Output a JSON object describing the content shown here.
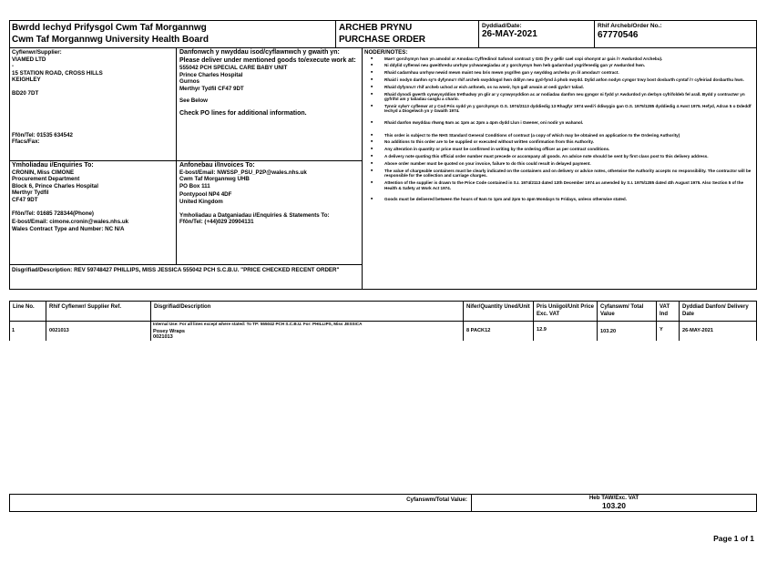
{
  "header": {
    "org_welsh": "Bwrdd Iechyd Prifysgol Cwm Taf Morgannwg",
    "org_english": "Cwm Taf Morgannwg University Health Board",
    "doc_title_welsh": "ARCHEB PRYNU",
    "doc_title_english": "PURCHASE ORDER",
    "date_label": "Dyddiad/Date:",
    "date_value": "26-MAY-2021",
    "order_label": "Rhif Archeb/Order No.:",
    "order_value": "67770546"
  },
  "supplier": {
    "label": "Cyflenwr/Supplier:",
    "lines": [
      "VIAMED LTD",
      "-",
      "15 STATION ROAD, CROSS HILLS",
      "KEIGHLEY",
      "",
      "BD20 7DT"
    ],
    "tel": "Ffôn/Tel: 01535 634542",
    "fax": "Ffacs/Fax:"
  },
  "delivery": {
    "label": "Danfonwch y nwyddau isod/cyflawnwch y gwaith yn: Please deliver under mentioned goods to/execute work at:",
    "lines": [
      "555042 PCH SPECIAL CARE BABY UNIT",
      "Prince Charles Hospital",
      "Gurnos",
      "Merthyr Tydfil CF47 9DT"
    ],
    "see_below": "See Below",
    "check": "Check PO lines for additional information."
  },
  "notes": {
    "label": "NODER/NOTES:",
    "welsh": [
      "Mae'r gorchymyn hwn yn amodol ar Amodau Cyffredinol Safonol contract y GIG (fe y gellir cael copi ohonynt ar gais i'r Awdurdod Archebu).",
      "Ni ddylid cyflenwi neu gweithredu unrhyw ychwanegiadau at y gorchymyn hwn heb gadarnhad ysgrifenedig gan yr Awdurdod hwn.",
      "Rhaid cadarnhau unrhyw newid mewn maint neu bris mewn ysgrifen gan y swyddog archebu yn ôl amodau'r contract.",
      "Rhaid i nodyn danfon sy'n dyfynnu'r rhif archeb swyddogol hwn ddilyn neu gyd-fynd â phob nwydd. Dylid anfon nodyn cyngor trwy bost dosbarth cyntaf i'r cyfeiriad dosbarthu hwn.",
      "Rhaid dyfynnu'r rhif archeb uchod ar eich anfoneb, os na wneir, hyn gall arwain at oedi gyda'r taliad.",
      "Rhaid dynodi gwerth cynwysyddion trethadwy yn glir ar y cynwysyddion ac ar nodiadau danfon neu gyngor ni fydd yr Awdurdod yn derbyn cyfrifoldeb fel arall. Bydd y contractwr yn gyfrifol am y taliadau casglu a chario.",
      "Tynnir sylw'r cyflenwr at y Cod Pris sydd yn y gorchymyn O.S. 1974/2113 dyddiedig 13 Rhagfyr 1974 wedi'i ddiwygio gan O.S. 1975/1285 dyddiedig 4 Awst 1975. Hefyd, Adran 5 o Ddeddf Iechyd a Diogelwch yn y Gwaith 1974.",
      "Rhaid danfon nwyddau rhwng 9am ac 1pm ac 2pm a 4pm dydd Llun i Gwener, oni nodir yn wahanol."
    ],
    "english": [
      "This order is subject to the NHS Standard General Conditions of contract (a copy of which may be obtained on application to the Ordering Authority)",
      "No additions to this order are to be supplied or executed without written confirmation from this Authority.",
      "Any alteration in quantity or price must be confirmed in writing by the ordering officer as per contract conditions.",
      "A delivery note quoting this official order number must precede or accompany all goods. An advice note should be sent by first class post to this delivery address.",
      "Above order number must be quoted on your invoice, failure to do this could result in delayed payment.",
      "The value of chargeable containers must be clearly indicated on the containers and on delivery or advice notes, otherwise the Authority accepts no responsibility. The contractor will be responsible for the collection and carriage charges.",
      "Attention of the supplier is drawn to the Price Code contained in S.I. 1974/2113 dated 13th December 1974 as amended by S.I. 1975/1285 dated 4th August 1975. Also Section 5 of the Health & Safety at Work Act 1974.",
      "Goods must be delivered between the hours of 9am to 1pm and 2pm to 4pm Mondays to Fridays, unless otherwise stated."
    ]
  },
  "enquiries": {
    "label": "Ymholiadau i/Enquiries To:",
    "lines": [
      "CRONIN, Miss CIMONE",
      "Procurement Department",
      "Block 6, Prince Charles Hospital",
      "Merthyr Tydfil",
      "CF47 9DT"
    ],
    "tel": "Ffôn/Tel: 01685 728344(Phone)",
    "email": "E-bost/Email: cimone.cronin@wales.nhs.uk",
    "contract": "Wales Contract Type and Number: NC N/A"
  },
  "invoices": {
    "label": "Anfonebau i/Invoices To:",
    "lines": [
      "E-bost/Email: NWSSP_PSU_P2P@wales.nhs.uk",
      "Cwm Taf Morgannwg UHB",
      "PO Box 111",
      "Pontypool NP4 4DF",
      "United Kingdom"
    ],
    "statements": "Ymholiadau a Datganiadau i/Enquiries & Statements To:",
    "tel": "Ffôn/Tel: (+44)029 20904131"
  },
  "description": "Disgrifiad/Description: REV 59748427 PHILLIPS, MISS JESSICA 555042 PCH S.C.B.U. \"PRICE CHECKED RECENT ORDER\"",
  "lines_table": {
    "headers": [
      "Line No.",
      "Rhif Cyflenwr/ Supplier Ref.",
      "Disgrifiad/Description",
      "Nifer/Quantity Uned/Unit",
      "Pris Uniigol/Unit Price Exc. VAT",
      "Cyfanswm/ Total Value",
      "VAT Ind",
      "Dyddiad Danfon/ Delivery Date"
    ],
    "rows": [
      {
        "line": "1",
        "ref": "0021013",
        "internal": "Internal Use: For all lines except where stated: To TP: 555042 PCH S.C.B.U. For: PHILLIPS, Miss JESSICA",
        "desc": "Posey Wraps",
        "desc2": "0021013",
        "qty": "8 PACK12",
        "price": "12.9",
        "total": "103.20",
        "vat": "Y",
        "date": "26-MAY-2021"
      }
    ]
  },
  "totals": {
    "label": "Cyfanswm/Total Value:",
    "exvat_label": "Heb TAW/Exc. VAT",
    "value": "103.20"
  },
  "footer": {
    "page": "Page 1 of 1"
  }
}
